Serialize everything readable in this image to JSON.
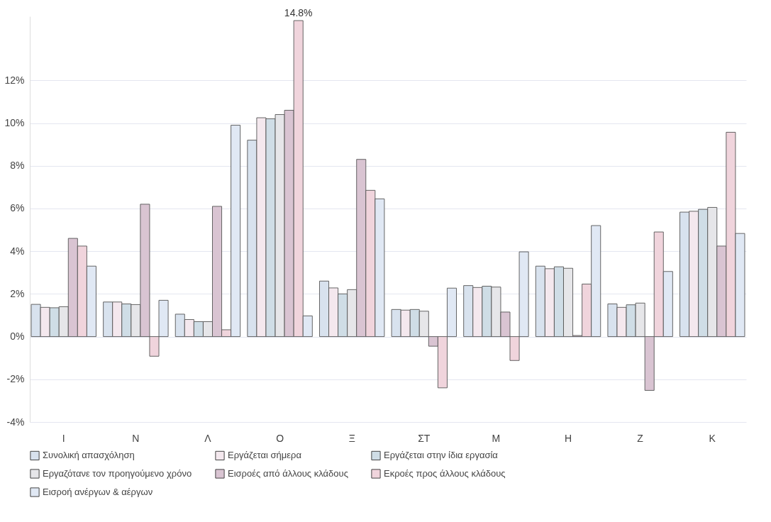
{
  "chart_data": {
    "type": "bar",
    "categories": [
      "Ι",
      "Ν",
      "Λ",
      "Ο",
      "Ξ",
      "ΣΤ",
      "Μ",
      "Η",
      "Ζ",
      "Κ"
    ],
    "series": [
      {
        "name": "Συνολική απασχόληση",
        "color": "#d8e2ee",
        "values": [
          1.51,
          1.62,
          1.05,
          9.2,
          2.6,
          1.27,
          2.39,
          3.3,
          1.53,
          5.83
        ]
      },
      {
        "name": "Εργάζεται σήμερα",
        "color": "#f4e8ee",
        "values": [
          1.37,
          1.62,
          0.8,
          10.25,
          2.28,
          1.24,
          2.3,
          3.18,
          1.37,
          5.87
        ]
      },
      {
        "name": "Εργάζεται στην ίδια εργασία",
        "color": "#cfdde6",
        "values": [
          1.35,
          1.53,
          0.7,
          10.2,
          2.0,
          1.27,
          2.36,
          3.27,
          1.49,
          5.96
        ]
      },
      {
        "name": "Εργαζότανε τον προηγούμενο χρόνο",
        "color": "#e6e6e9",
        "values": [
          1.4,
          1.5,
          0.7,
          10.4,
          2.2,
          1.19,
          2.32,
          3.2,
          1.57,
          6.05
        ]
      },
      {
        "name": "Εισροές από άλλους κλάδους",
        "color": "#d9c4d2",
        "values": [
          4.6,
          6.2,
          6.1,
          10.6,
          8.3,
          -0.45,
          1.15,
          0.05,
          -2.52,
          4.24
        ]
      },
      {
        "name": "Εκροές προς άλλους κλάδους",
        "color": "#f0d4dc",
        "values": [
          4.24,
          -0.92,
          0.32,
          14.8,
          6.85,
          -2.4,
          -1.12,
          2.46,
          4.9,
          9.57
        ],
        "value_labels": [
          null,
          null,
          null,
          "14.8%",
          null,
          null,
          null,
          null,
          null,
          null
        ]
      },
      {
        "name": "Εισροή ανέργων & αέργων",
        "color": "#e0e8f4",
        "values": [
          3.3,
          1.7,
          9.9,
          0.97,
          6.45,
          2.27,
          3.97,
          5.2,
          3.05,
          4.83
        ]
      }
    ],
    "ylim": [
      -4,
      15
    ],
    "yticks": [
      {
        "value": -4,
        "label": "-4%"
      },
      {
        "value": -2,
        "label": "-2%"
      },
      {
        "value": 0,
        "label": "0%"
      },
      {
        "value": 2,
        "label": "2%"
      },
      {
        "value": 4,
        "label": "4%"
      },
      {
        "value": 6,
        "label": "6%"
      },
      {
        "value": 8,
        "label": "8%"
      },
      {
        "value": 10,
        "label": "10%"
      },
      {
        "value": 12,
        "label": "12%"
      }
    ],
    "grid": "y",
    "legend": "bottom"
  }
}
